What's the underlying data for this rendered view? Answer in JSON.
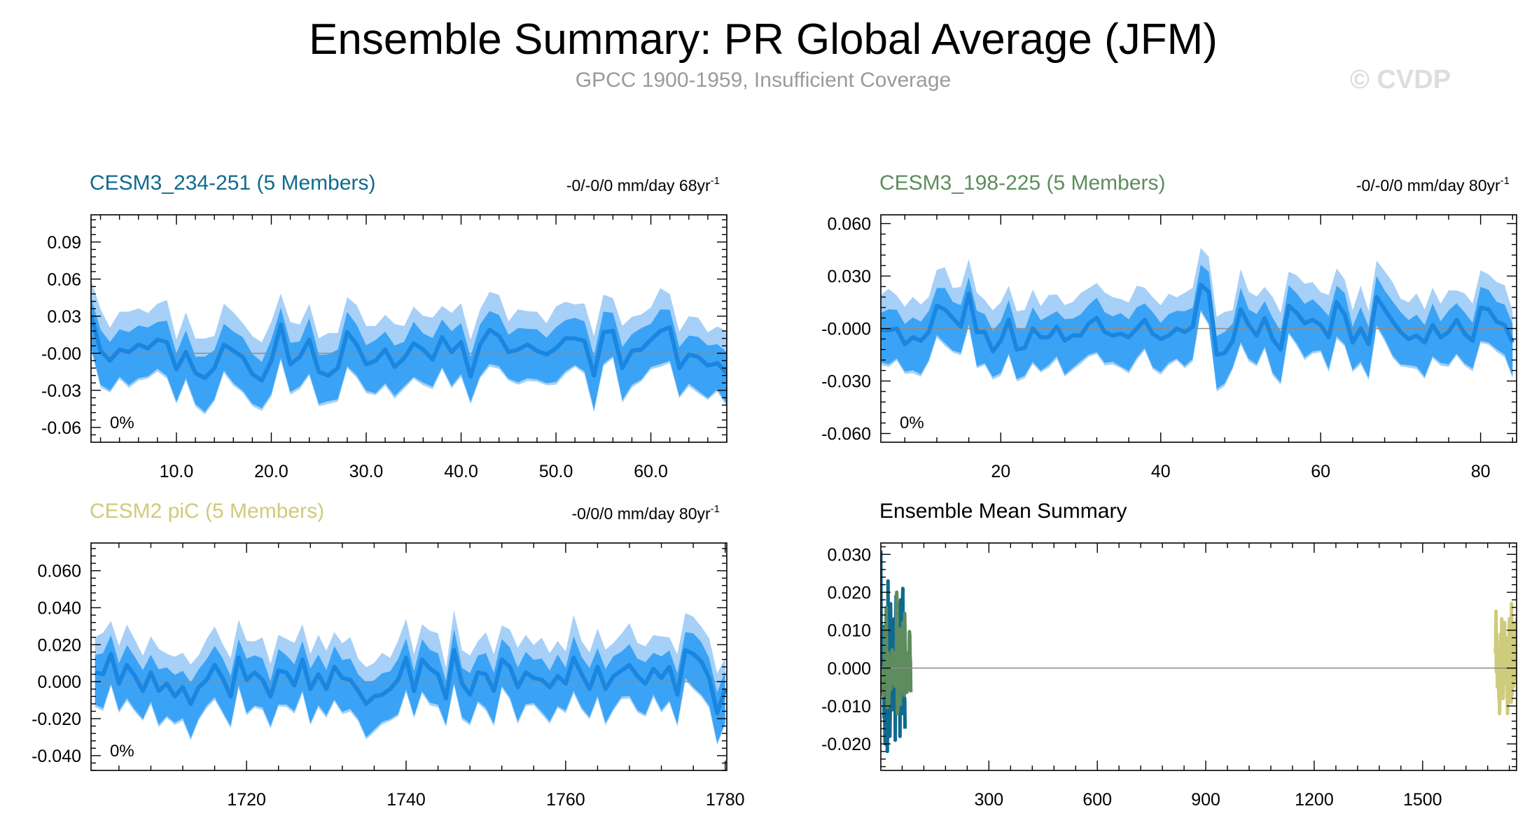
{
  "title": "Ensemble Summary: PR Global Average (JFM)",
  "subtitle": "GPCC 1900-1959, Insufficient Coverage",
  "watermark": "© CVDP",
  "colors": {
    "band_outer": "#a6d0f7",
    "band_inner": "#3ba3f5",
    "mean_line": "#1a86e0",
    "zero_line": "#8c8c8c",
    "title1": "#0f6a8f",
    "title2": "#5e8c5e",
    "title3": "#cfcb7c",
    "subtitle": "#9a9a9a",
    "watermark": "#dddddd"
  },
  "chart_data": [
    {
      "type": "area",
      "title": "CESM3_234-251 (5 Members)",
      "trend_text": "-0/-0/0 mm/day 68yr",
      "trend_sup": "-1",
      "pct_label": "0%",
      "xlim": [
        1,
        68
      ],
      "ylim": [
        -0.072,
        0.112
      ],
      "xticks": [
        10,
        20,
        30,
        40,
        50,
        60
      ],
      "xtick_labels": [
        "10.0",
        "20.0",
        "30.0",
        "40.0",
        "50.0",
        "60.0"
      ],
      "yticks": [
        0.09,
        0.06,
        0.03,
        0,
        -0.03,
        -0.06
      ],
      "ytick_labels": [
        "0.09",
        "0.06",
        "0.03",
        "-0.00",
        "-0.03",
        "-0.06"
      ],
      "x_start": 1,
      "mean": [
        0.031,
        0.002,
        -0.006,
        0.003,
        0.001,
        0.007,
        0.004,
        0.011,
        0.009,
        -0.013,
        0.001,
        -0.016,
        -0.02,
        -0.012,
        0.007,
        0.002,
        -0.003,
        -0.017,
        -0.022,
        -0.006,
        0.023,
        -0.009,
        -0.003,
        0.011,
        -0.015,
        -0.018,
        -0.012,
        0.017,
        0.007,
        -0.009,
        -0.006,
        0.003,
        -0.011,
        -0.004,
        0.008,
        0.003,
        -0.005,
        0.013,
        0.001,
        0.009,
        -0.019,
        0.007,
        0.019,
        0.014,
        0.001,
        0.003,
        0.007,
        0.002,
        -0.001,
        0.004,
        0.012,
        0.012,
        0.01,
        -0.018,
        0.017,
        0.018,
        -0.012,
        0.002,
        0.003,
        0.011,
        0.018,
        0.021,
        -0.012,
        -0.001,
        -0.003,
        -0.01,
        -0.008,
        -0.016
      ]
    },
    {
      "type": "area",
      "title": "CESM3_198-225 (5 Members)",
      "trend_text": "-0/-0/0 mm/day 80yr",
      "trend_sup": "-1",
      "pct_label": "0%",
      "xlim": [
        5,
        84.5
      ],
      "ylim": [
        -0.065,
        0.065
      ],
      "xticks": [
        20,
        40,
        60,
        80
      ],
      "xtick_labels": [
        "20",
        "40",
        "60",
        "80"
      ],
      "yticks": [
        0.06,
        0.03,
        0,
        -0.03,
        -0.06
      ],
      "ytick_labels": [
        "0.060",
        "0.030",
        "-0.000",
        "-0.030",
        "-0.060"
      ],
      "x_start": 5,
      "mean": [
        -0.001,
        -0.001,
        0.0,
        -0.009,
        -0.005,
        -0.007,
        -0.002,
        0.013,
        0.011,
        0.006,
        0.001,
        0.02,
        -0.002,
        -0.002,
        -0.013,
        -0.007,
        0.005,
        -0.012,
        -0.011,
        0.0,
        -0.005,
        -0.005,
        0.001,
        -0.007,
        -0.004,
        -0.004,
        0.003,
        0.006,
        -0.002,
        -0.004,
        -0.003,
        -0.005,
        0.0,
        0.005,
        -0.003,
        -0.006,
        -0.004,
        0.0,
        -0.002,
        0.001,
        0.025,
        0.021,
        -0.015,
        -0.014,
        -0.007,
        0.011,
        0.002,
        -0.004,
        0.006,
        -0.006,
        -0.012,
        0.013,
        0.009,
        0.003,
        0.005,
        0.002,
        -0.005,
        0.015,
        0.008,
        -0.008,
        0.0,
        -0.009,
        0.018,
        0.011,
        0.004,
        -0.002,
        -0.006,
        -0.004,
        -0.008,
        0.002,
        -0.005,
        -0.002,
        0.005,
        -0.003,
        -0.007,
        0.012,
        0.011,
        0.004,
        0.002,
        -0.008
      ]
    },
    {
      "type": "area",
      "title": "CESM2 piC (5 Members)",
      "trend_text": "-0/0/0 mm/day 80yr",
      "trend_sup": "-1",
      "pct_label": "0%",
      "xlim": [
        1700.5,
        1780.2
      ],
      "ylim": [
        -0.048,
        0.075
      ],
      "xticks": [
        1720,
        1740,
        1760,
        1780
      ],
      "xtick_labels": [
        "1720",
        "1740",
        "1760",
        "1780"
      ],
      "yticks": [
        0.06,
        0.04,
        0.02,
        0,
        -0.02,
        -0.04
      ],
      "ytick_labels": [
        "0.060",
        "0.040",
        "0.020",
        "0.000",
        "-0.020",
        "-0.040"
      ],
      "x_start": 1701,
      "mean": [
        0.005,
        0.004,
        0.015,
        -0.001,
        0.009,
        0.003,
        -0.005,
        0.005,
        -0.005,
        -0.001,
        -0.008,
        -0.003,
        -0.012,
        -0.003,
        0.001,
        0.009,
        0.002,
        -0.008,
        0.013,
        0.001,
        0.005,
        0.001,
        -0.008,
        0.006,
        0.005,
        -0.002,
        0.012,
        -0.004,
        0.004,
        -0.004,
        0.008,
        0.002,
        0.001,
        -0.005,
        -0.012,
        -0.008,
        -0.007,
        -0.004,
        0.001,
        0.013,
        -0.005,
        0.012,
        0.007,
        0.004,
        -0.009,
        0.017,
        -0.001,
        -0.007,
        0.005,
        0.004,
        -0.005,
        0.012,
        0.008,
        -0.003,
        0.005,
        0.002,
        0.001,
        -0.003,
        0.003,
        -0.001,
        0.013,
        0.004,
        -0.004,
        0.008,
        -0.004,
        0.003,
        0.006,
        0.009,
        0.003,
        -0.001,
        0.007,
        0.002,
        0.008,
        -0.007,
        0.017,
        0.015,
        0.011,
        0.002,
        -0.017,
        -0.004
      ]
    },
    {
      "type": "line",
      "title": "Ensemble Mean Summary",
      "xlim": [
        1,
        1760
      ],
      "ylim": [
        -0.027,
        0.033
      ],
      "xticks": [
        300,
        600,
        900,
        1200,
        1500
      ],
      "xtick_labels": [
        "300",
        "600",
        "900",
        "1200",
        "1500"
      ],
      "yticks": [
        0.03,
        0.02,
        0.01,
        0,
        -0.01,
        -0.02
      ],
      "ytick_labels": [
        "0.030",
        "0.020",
        "0.010",
        "0.000",
        "-0.010",
        "-0.020"
      ],
      "series": [
        {
          "name": "CESM3_234-251",
          "source": 0,
          "color": "#0f6a8f",
          "x_start": 1,
          "scale": 1.0
        },
        {
          "name": "CESM3_198-225",
          "source": 1,
          "color": "#5e8c5e",
          "x_start": 5,
          "scale": 0.8
        },
        {
          "name": "CESM2 piC",
          "source": 2,
          "color": "#cfcb7c",
          "x_start": 1701,
          "scale": 1.0
        }
      ]
    }
  ]
}
